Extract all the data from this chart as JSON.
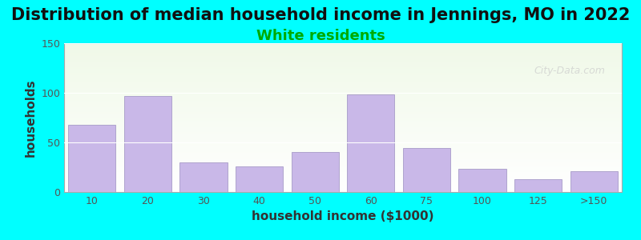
{
  "title": "Distribution of median household income in Jennings, MO in 2022",
  "subtitle": "White residents",
  "xlabel": "household income ($1000)",
  "ylabel": "households",
  "background_color": "#00FFFF",
  "plot_bg_gradient_top": "#f0f9e8",
  "plot_bg_gradient_bottom": "#ffffff",
  "bar_color": "#c9b8e8",
  "bar_edge_color": "#9b8fc0",
  "categories": [
    "10",
    "20",
    "30",
    "40",
    "50",
    "60",
    "75",
    "100",
    "125",
    ">150"
  ],
  "values": [
    68,
    97,
    30,
    26,
    40,
    98,
    44,
    23,
    13,
    21
  ],
  "ylim": [
    0,
    150
  ],
  "yticks": [
    0,
    50,
    100,
    150
  ],
  "title_fontsize": 15,
  "subtitle_fontsize": 13,
  "subtitle_color": "#00aa00",
  "axis_label_fontsize": 11,
  "watermark_text": "City-Data.com",
  "watermark_color": "#cccccc"
}
